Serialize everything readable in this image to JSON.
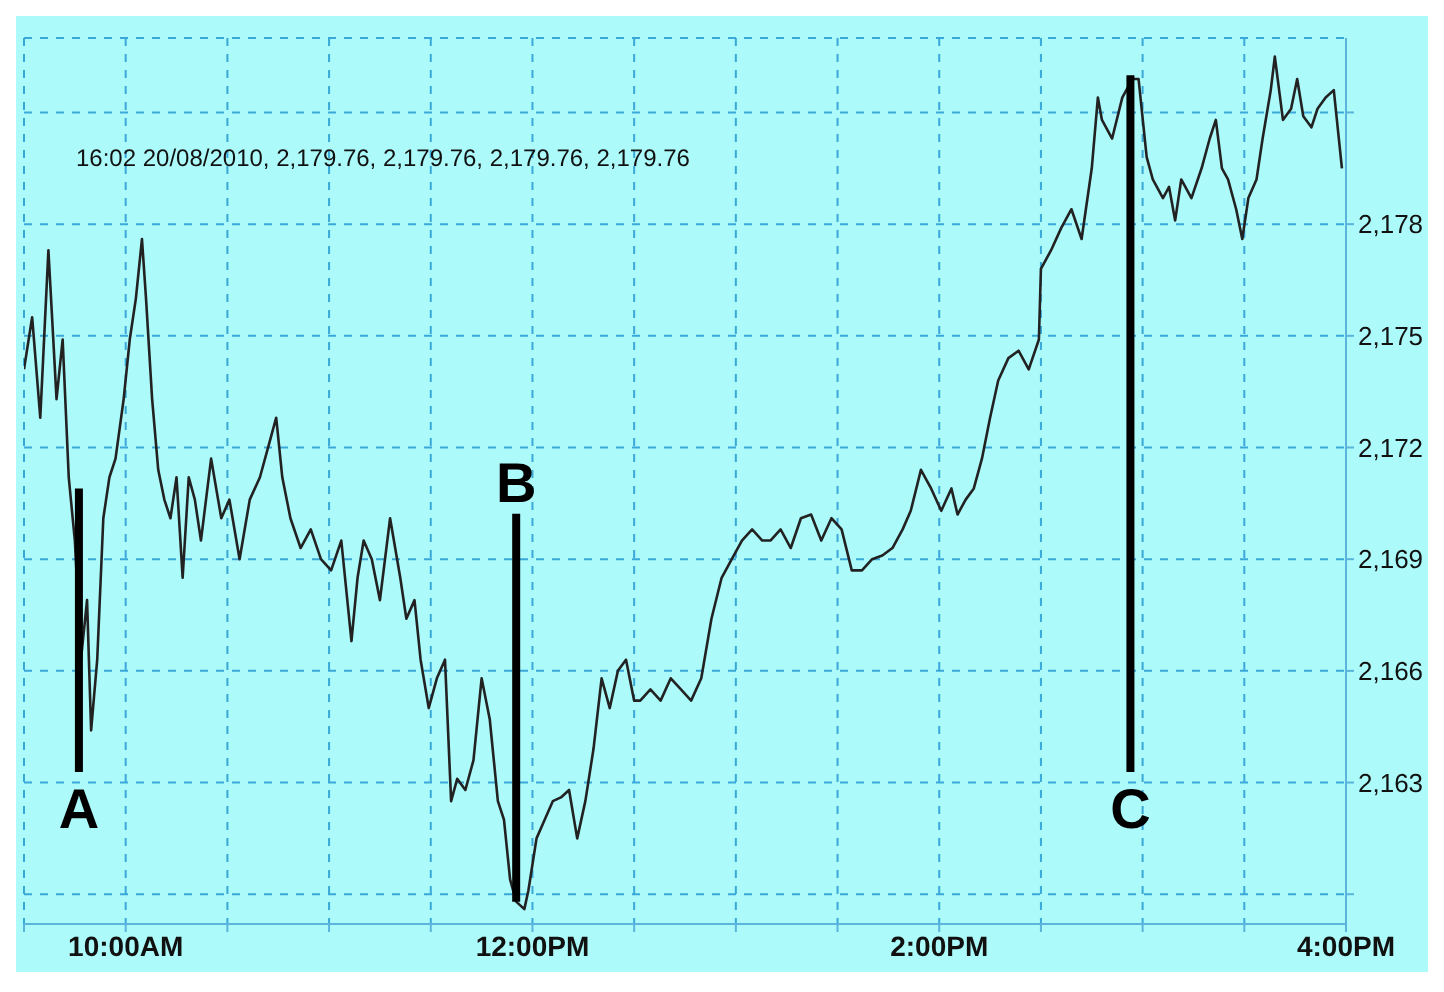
{
  "chart_data": {
    "type": "line",
    "subtitle": "16:02 20/08/2010, 2,179.76, 2,179.76, 2,179.76, 2,179.76",
    "x": [
      9.5,
      9.54,
      9.58,
      9.62,
      9.66,
      9.69,
      9.72,
      9.75,
      9.78,
      9.81,
      9.83,
      9.86,
      9.89,
      9.92,
      9.95,
      9.99,
      10.02,
      10.05,
      10.08,
      10.1,
      10.13,
      10.16,
      10.19,
      10.22,
      10.25,
      10.28,
      10.31,
      10.34,
      10.37,
      10.42,
      10.47,
      10.51,
      10.56,
      10.61,
      10.66,
      10.71,
      10.74,
      10.77,
      10.81,
      10.86,
      10.91,
      10.96,
      11.01,
      11.06,
      11.11,
      11.14,
      11.17,
      11.21,
      11.25,
      11.3,
      11.35,
      11.38,
      11.42,
      11.45,
      11.49,
      11.53,
      11.57,
      11.6,
      11.63,
      11.67,
      11.71,
      11.75,
      11.79,
      11.83,
      11.86,
      11.89,
      11.92,
      11.96,
      11.98,
      12.02,
      12.06,
      12.1,
      12.14,
      12.18,
      12.22,
      12.26,
      12.3,
      12.34,
      12.38,
      12.42,
      12.46,
      12.5,
      12.53,
      12.58,
      12.63,
      12.68,
      12.73,
      12.78,
      12.83,
      12.88,
      12.93,
      12.98,
      13.03,
      13.08,
      13.13,
      13.17,
      13.22,
      13.27,
      13.32,
      13.37,
      13.42,
      13.47,
      13.52,
      13.57,
      13.62,
      13.67,
      13.72,
      13.77,
      13.82,
      13.86,
      13.91,
      13.96,
      14.01,
      14.06,
      14.09,
      14.13,
      14.17,
      14.21,
      14.25,
      14.29,
      14.34,
      14.39,
      14.44,
      14.49,
      14.5,
      14.55,
      14.6,
      14.65,
      14.7,
      14.75,
      14.78,
      14.8,
      14.85,
      14.9,
      14.95,
      14.98,
      15.02,
      15.05,
      15.1,
      15.13,
      15.16,
      15.19,
      15.24,
      15.29,
      15.33,
      15.36,
      15.39,
      15.42,
      15.46,
      15.49,
      15.52,
      15.56,
      15.59,
      15.63,
      15.65,
      15.69,
      15.73,
      15.76,
      15.79,
      15.83,
      15.86,
      15.9,
      15.94,
      15.98
    ],
    "series": [
      {
        "color": "#222222",
        "values": [
          2174.1,
          2175.5,
          2172.8,
          2177.3,
          2173.3,
          2174.9,
          2171.2,
          2169.5,
          2166.3,
          2167.9,
          2164.4,
          2166.3,
          2170.1,
          2171.2,
          2171.7,
          2173.3,
          2174.9,
          2176.0,
          2177.6,
          2176.0,
          2173.3,
          2171.4,
          2170.6,
          2170.1,
          2171.2,
          2168.5,
          2171.2,
          2170.6,
          2169.5,
          2171.7,
          2170.1,
          2170.6,
          2169.0,
          2170.6,
          2171.2,
          2172.2,
          2172.8,
          2171.2,
          2170.1,
          2169.3,
          2169.8,
          2169.0,
          2168.7,
          2169.5,
          2166.8,
          2168.5,
          2169.5,
          2169.0,
          2167.9,
          2170.1,
          2168.5,
          2167.4,
          2167.9,
          2166.3,
          2165.0,
          2165.8,
          2166.3,
          2162.5,
          2163.1,
          2162.8,
          2163.6,
          2165.8,
          2164.7,
          2162.5,
          2162.0,
          2160.4,
          2159.8,
          2159.6,
          2160.1,
          2161.5,
          2162.0,
          2162.5,
          2162.6,
          2162.8,
          2161.5,
          2162.5,
          2163.9,
          2165.8,
          2165.0,
          2166.0,
          2166.3,
          2165.2,
          2165.2,
          2165.5,
          2165.2,
          2165.8,
          2165.5,
          2165.2,
          2165.8,
          2167.4,
          2168.5,
          2169.0,
          2169.5,
          2169.8,
          2169.5,
          2169.5,
          2169.8,
          2169.3,
          2170.1,
          2170.2,
          2169.5,
          2170.1,
          2169.8,
          2168.7,
          2168.7,
          2169.0,
          2169.1,
          2169.3,
          2169.8,
          2170.3,
          2171.4,
          2170.9,
          2170.3,
          2170.9,
          2170.2,
          2170.6,
          2170.9,
          2171.7,
          2172.8,
          2173.8,
          2174.4,
          2174.6,
          2174.1,
          2174.9,
          2176.8,
          2177.3,
          2177.9,
          2178.4,
          2177.6,
          2179.5,
          2181.4,
          2180.8,
          2180.3,
          2181.4,
          2181.9,
          2181.9,
          2179.8,
          2179.2,
          2178.7,
          2179.0,
          2178.1,
          2179.2,
          2178.7,
          2179.5,
          2180.3,
          2180.8,
          2179.5,
          2179.2,
          2178.4,
          2177.6,
          2178.7,
          2179.2,
          2180.3,
          2181.6,
          2182.5,
          2180.8,
          2181.1,
          2181.9,
          2180.9,
          2180.6,
          2181.1,
          2181.4,
          2181.6,
          2179.5
        ]
      }
    ],
    "xlim": [
      9.5,
      16
    ],
    "xticks": [
      {
        "value": 9.5,
        "label": null
      },
      {
        "value": 10,
        "label": "10:00AM"
      },
      {
        "value": 10.5,
        "label": null
      },
      {
        "value": 11,
        "label": null
      },
      {
        "value": 11.5,
        "label": null
      },
      {
        "value": 12,
        "label": "12:00PM"
      },
      {
        "value": 12.5,
        "label": null
      },
      {
        "value": 13,
        "label": null
      },
      {
        "value": 13.5,
        "label": null
      },
      {
        "value": 14,
        "label": "2:00PM"
      },
      {
        "value": 14.5,
        "label": null
      },
      {
        "value": 15,
        "label": null
      },
      {
        "value": 15.5,
        "label": null
      },
      {
        "value": 16,
        "label": "4:00PM"
      }
    ],
    "ylim": [
      2159.2,
      2183
    ],
    "yticks": [
      {
        "value": 2160,
        "label": null
      },
      {
        "value": 2163,
        "label": "2,163"
      },
      {
        "value": 2166,
        "label": "2,166"
      },
      {
        "value": 2169,
        "label": "2,169"
      },
      {
        "value": 2172,
        "label": "2,172"
      },
      {
        "value": 2175,
        "label": "2,175"
      },
      {
        "value": 2178,
        "label": "2,178"
      },
      {
        "value": 2181,
        "label": null
      }
    ],
    "annotations": [
      {
        "text": "A",
        "x": 9.77,
        "y": 2170.9
      },
      {
        "text": "B",
        "x": 11.92,
        "y": 2159.8
      },
      {
        "text": "C",
        "x": 14.94,
        "y": 2182.0
      }
    ],
    "grid": true,
    "legend": false,
    "marker": "none",
    "line_style": "solid"
  }
}
